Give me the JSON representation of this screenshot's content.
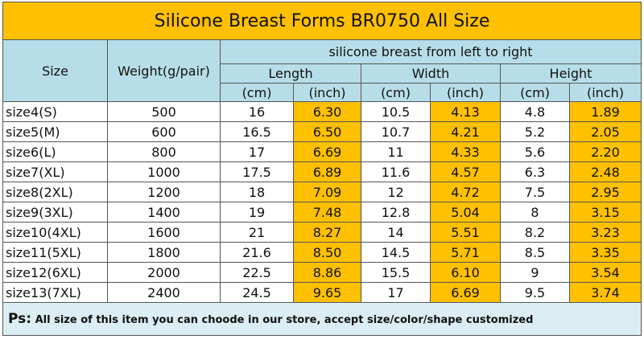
{
  "title": "Silicone Breast Forms BR0750 All Size",
  "header": {
    "size": "Size",
    "weight": "Weight(g/pair)",
    "group": "silicone breast from left to right",
    "length": "Length",
    "width": "Width",
    "height": "Height",
    "units": [
      "(cm)",
      "(inch)",
      "(cm)",
      "(inch)",
      "(cm)",
      "(inch)"
    ]
  },
  "table": {
    "rows": [
      [
        "size4(S)",
        "500",
        "16",
        "6.30",
        "10.5",
        "4.13",
        "4.8",
        "1.89"
      ],
      [
        "size5(M)",
        "600",
        "16.5",
        "6.50",
        "10.7",
        "4.21",
        "5.2",
        "2.05"
      ],
      [
        "size6(L)",
        "800",
        "17",
        "6.69",
        "11",
        "4.33",
        "5.6",
        "2.20"
      ],
      [
        "size7(XL)",
        "1000",
        "17.5",
        "6.89",
        "11.6",
        "4.57",
        "6.3",
        "2.48"
      ],
      [
        "size8(2XL)",
        "1200",
        "18",
        "7.09",
        "12",
        "4.72",
        "7.5",
        "2.95"
      ],
      [
        "size9(3XL)",
        "1400",
        "19",
        "7.48",
        "12.8",
        "5.04",
        "8",
        "3.15"
      ],
      [
        "size10(4XL)",
        "1600",
        "21",
        "8.27",
        "14",
        "5.51",
        "8.2",
        "3.23"
      ],
      [
        "size11(5XL)",
        "1800",
        "21.6",
        "8.50",
        "14.5",
        "5.71",
        "8.5",
        "3.35"
      ],
      [
        "size12(6XL)",
        "2000",
        "22.5",
        "8.86",
        "15.5",
        "6.10",
        "9",
        "3.54"
      ],
      [
        "size13(7XL)",
        "2400",
        "24.5",
        "9.65",
        "17",
        "6.69",
        "9.5",
        "3.74"
      ]
    ]
  },
  "footer": {
    "prefix": "Ps:",
    "text": "All size of this item you can choode in our store, accept size/color/shape customized"
  }
}
